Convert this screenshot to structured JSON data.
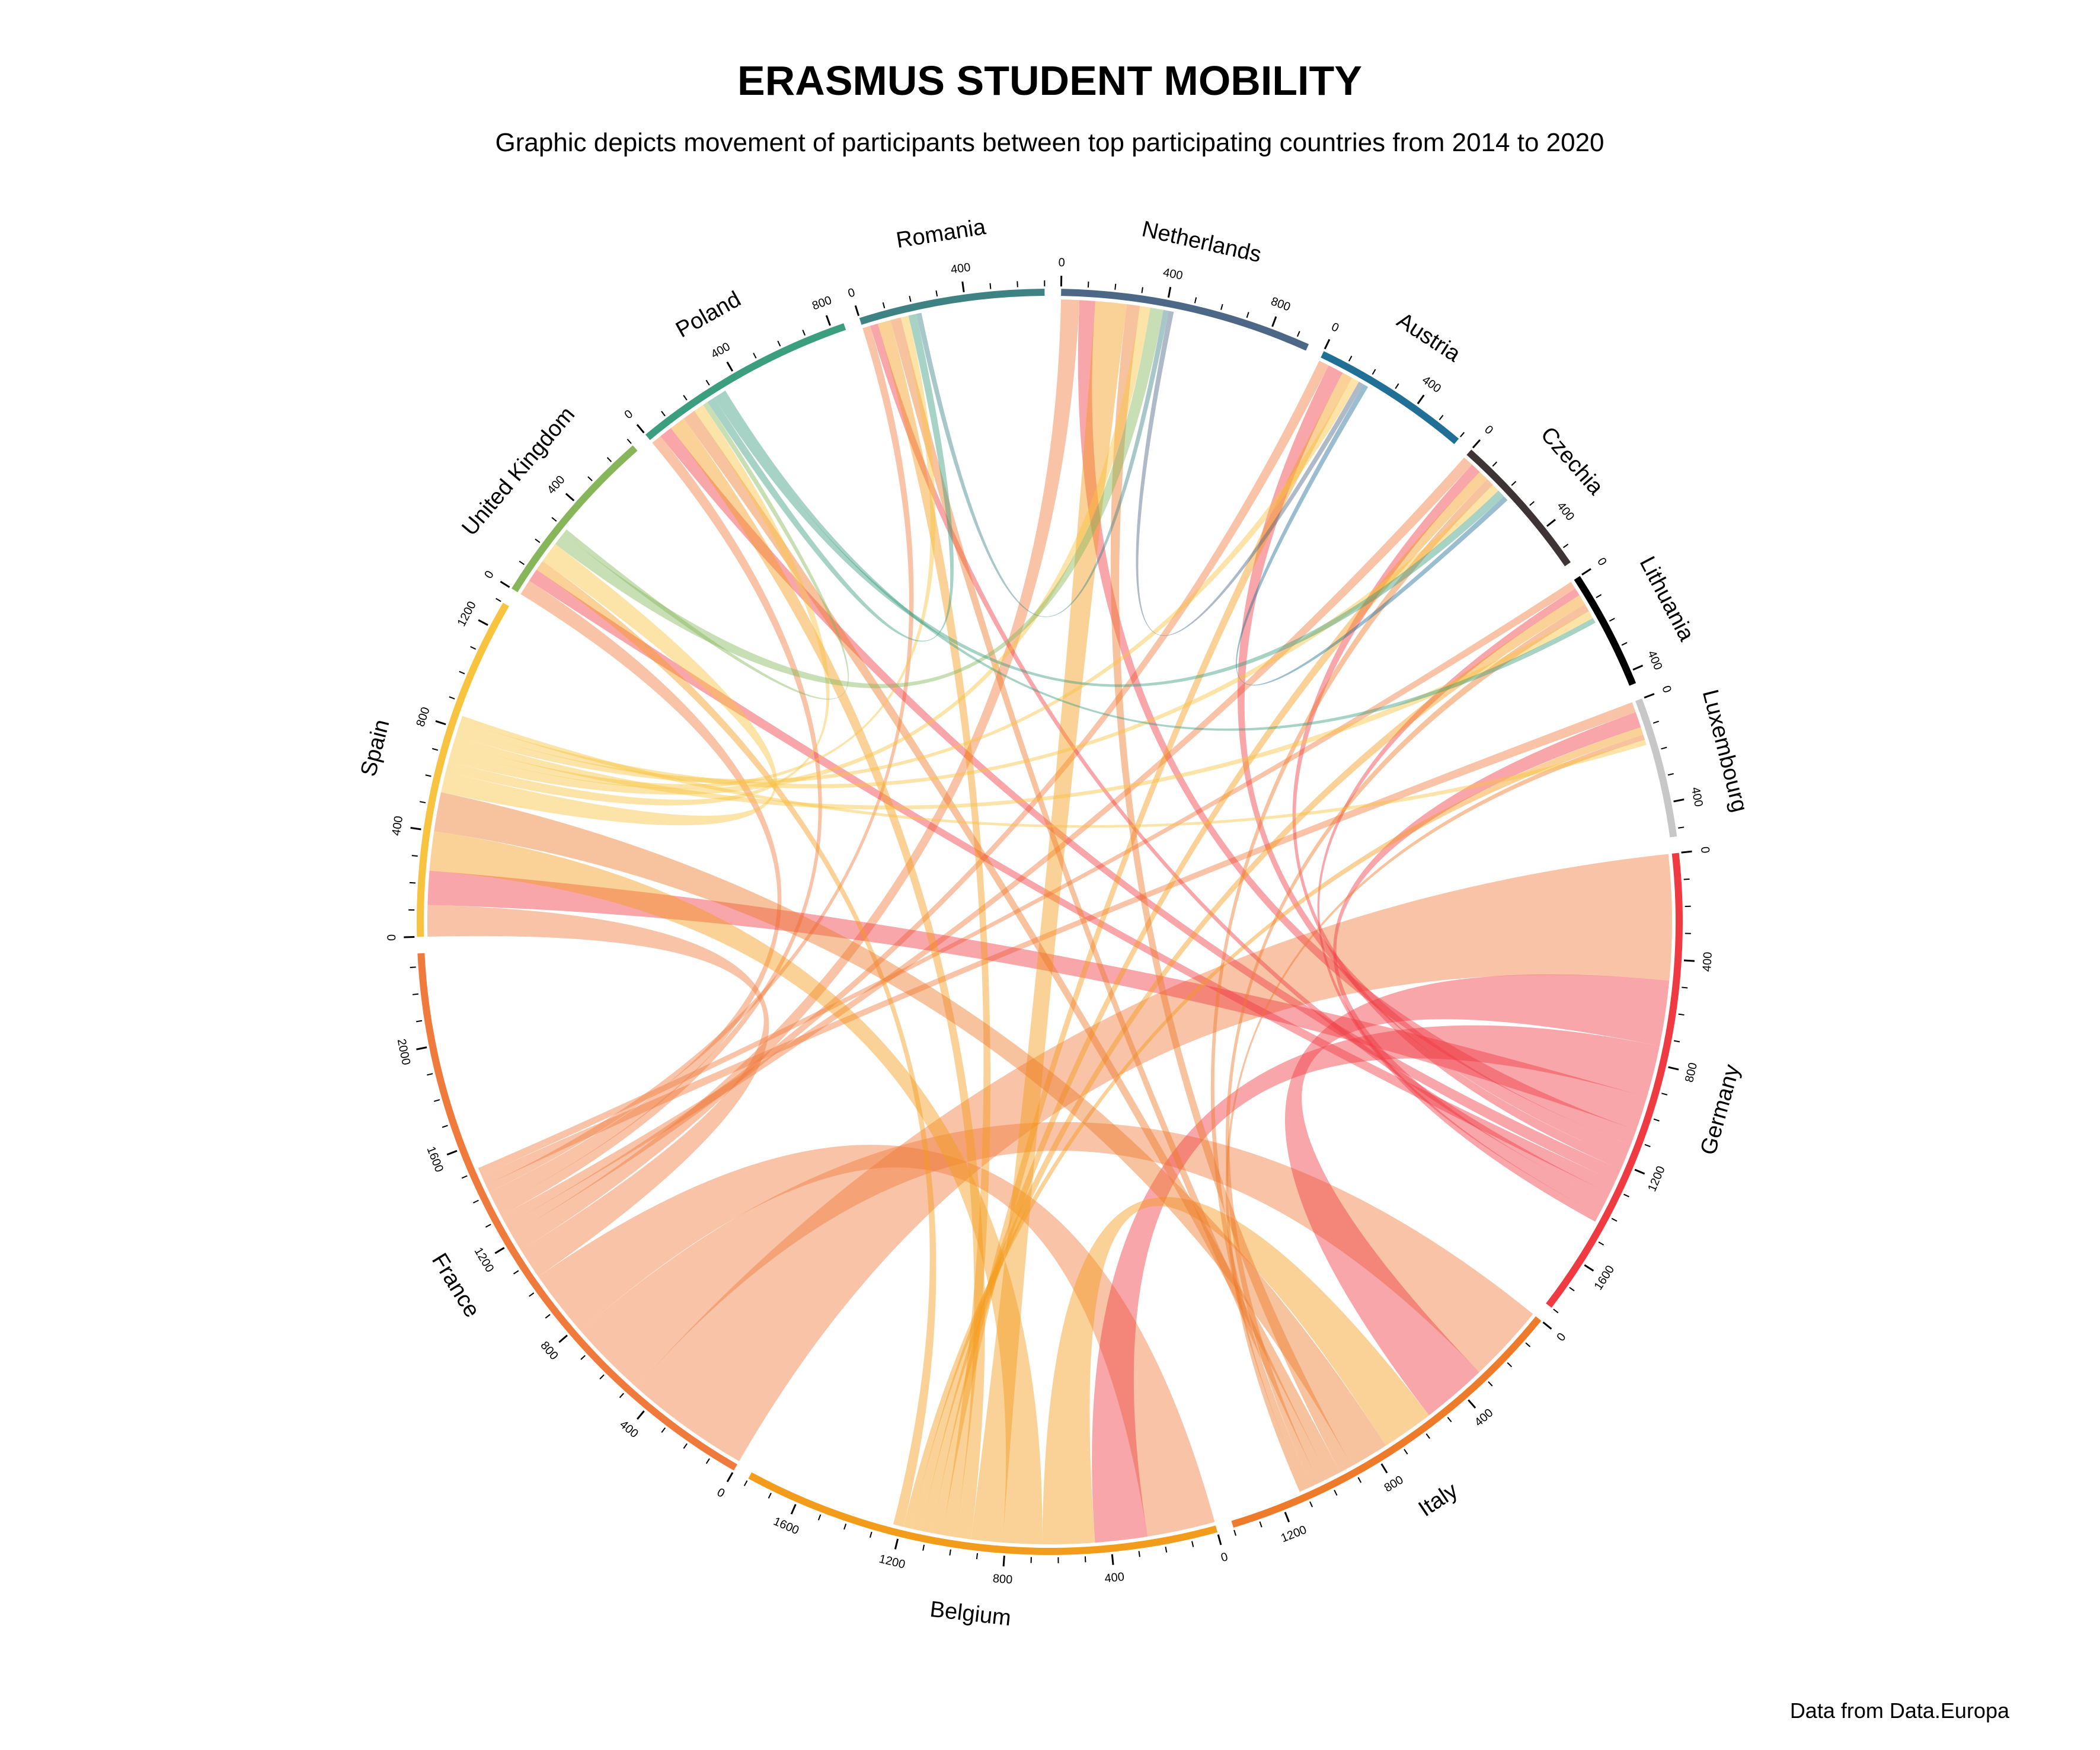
{
  "chart_data": {
    "type": "chord",
    "title": "ERASMUS STUDENT MOBILITY",
    "subtitle": "Graphic depicts movement of participants between top participating countries from 2014 to 2020",
    "source": "Data from Data.Europa",
    "gap_degrees": 1.5,
    "countries": [
      {
        "name": "Netherlands",
        "color": "#4d6786",
        "total": 950,
        "tick_labels": [
          "0",
          "400",
          "800"
        ]
      },
      {
        "name": "Austria",
        "color": "#1f6f96",
        "total": 600,
        "tick_labels": [
          "0",
          "400"
        ]
      },
      {
        "name": "Czechia",
        "color": "#3f3435",
        "total": 560,
        "tick_labels": [
          "0",
          "400"
        ]
      },
      {
        "name": "Lithuania",
        "color": "#000000",
        "total": 450,
        "tick_labels": [
          "0",
          "400"
        ]
      },
      {
        "name": "Luxembourg",
        "color": "#c7c7c7",
        "total": 530,
        "tick_labels": [
          "0",
          "400"
        ]
      },
      {
        "name": "Germany",
        "color": "#ef3a42",
        "total": 1800,
        "tick_labels": [
          "0",
          "400",
          "800",
          "1200",
          "1600"
        ]
      },
      {
        "name": "Italy",
        "color": "#ee7b2a",
        "total": 1400,
        "tick_labels": [
          "0",
          "400",
          "800",
          "1200"
        ]
      },
      {
        "name": "Belgium",
        "color": "#f39c1b",
        "total": 1800,
        "tick_labels": [
          "0",
          "400",
          "800",
          "1200",
          "1600"
        ]
      },
      {
        "name": "France",
        "color": "#ef7a3c",
        "total": 2350,
        "tick_labels": [
          "0",
          "400",
          "800",
          "1200",
          "1600",
          "2000"
        ]
      },
      {
        "name": "Spain",
        "color": "#f8c43f",
        "total": 1300,
        "tick_labels": [
          "0",
          "400",
          "800",
          "1200"
        ]
      },
      {
        "name": "United Kingdom",
        "color": "#86b55a",
        "total": 700,
        "tick_labels": [
          "0",
          "400"
        ]
      },
      {
        "name": "Poland",
        "color": "#3a9e7f",
        "total": 850,
        "tick_labels": [
          "0",
          "400",
          "800"
        ]
      },
      {
        "name": "Romania",
        "color": "#3f8284",
        "total": 700,
        "tick_labels": [
          "0",
          "400"
        ]
      }
    ],
    "flows": [
      {
        "from": "France",
        "to": "Germany",
        "value": 480
      },
      {
        "from": "France",
        "to": "Italy",
        "value": 300
      },
      {
        "from": "France",
        "to": "Belgium",
        "value": 260
      },
      {
        "from": "France",
        "to": "Spain",
        "value": 120
      },
      {
        "from": "France",
        "to": "Netherlands",
        "value": 70
      },
      {
        "from": "France",
        "to": "Austria",
        "value": 40
      },
      {
        "from": "France",
        "to": "Czechia",
        "value": 40
      },
      {
        "from": "France",
        "to": "Poland",
        "value": 40
      },
      {
        "from": "France",
        "to": "United Kingdom",
        "value": 60
      },
      {
        "from": "France",
        "to": "Romania",
        "value": 30
      },
      {
        "from": "France",
        "to": "Luxembourg",
        "value": 40
      },
      {
        "from": "France",
        "to": "Lithuania",
        "value": 30
      },
      {
        "from": "Germany",
        "to": "Italy",
        "value": 250
      },
      {
        "from": "Germany",
        "to": "Belgium",
        "value": 200
      },
      {
        "from": "Germany",
        "to": "Spain",
        "value": 130
      },
      {
        "from": "Germany",
        "to": "Netherlands",
        "value": 60
      },
      {
        "from": "Germany",
        "to": "Austria",
        "value": 60
      },
      {
        "from": "Germany",
        "to": "Czechia",
        "value": 40
      },
      {
        "from": "Germany",
        "to": "Poland",
        "value": 50
      },
      {
        "from": "Germany",
        "to": "United Kingdom",
        "value": 50
      },
      {
        "from": "Germany",
        "to": "Romania",
        "value": 30
      },
      {
        "from": "Germany",
        "to": "Luxembourg",
        "value": 60
      },
      {
        "from": "Germany",
        "to": "Lithuania",
        "value": 30
      },
      {
        "from": "Belgium",
        "to": "Italy",
        "value": 200
      },
      {
        "from": "Belgium",
        "to": "Spain",
        "value": 150
      },
      {
        "from": "Belgium",
        "to": "Netherlands",
        "value": 120
      },
      {
        "from": "Belgium",
        "to": "Poland",
        "value": 60
      },
      {
        "from": "Belgium",
        "to": "Romania",
        "value": 50
      },
      {
        "from": "Belgium",
        "to": "Austria",
        "value": 40
      },
      {
        "from": "Belgium",
        "to": "Czechia",
        "value": 40
      },
      {
        "from": "Belgium",
        "to": "Lithuania",
        "value": 40
      },
      {
        "from": "Belgium",
        "to": "Luxembourg",
        "value": 30
      },
      {
        "from": "Belgium",
        "to": "United Kingdom",
        "value": 40
      },
      {
        "from": "Italy",
        "to": "Spain",
        "value": 150
      },
      {
        "from": "Italy",
        "to": "Netherlands",
        "value": 50
      },
      {
        "from": "Italy",
        "to": "Poland",
        "value": 50
      },
      {
        "from": "Italy",
        "to": "Romania",
        "value": 40
      },
      {
        "from": "Italy",
        "to": "Lithuania",
        "value": 30
      },
      {
        "from": "Italy",
        "to": "Czechia",
        "value": 30
      },
      {
        "from": "Italy",
        "to": "Luxembourg",
        "value": 20
      },
      {
        "from": "Spain",
        "to": "United Kingdom",
        "value": 80
      },
      {
        "from": "Spain",
        "to": "Poland",
        "value": 40
      },
      {
        "from": "Spain",
        "to": "Netherlands",
        "value": 40
      },
      {
        "from": "Spain",
        "to": "Romania",
        "value": 30
      },
      {
        "from": "Spain",
        "to": "Lithuania",
        "value": 30
      },
      {
        "from": "Spain",
        "to": "Austria",
        "value": 30
      },
      {
        "from": "Spain",
        "to": "Czechia",
        "value": 30
      },
      {
        "from": "Spain",
        "to": "Luxembourg",
        "value": 20
      },
      {
        "from": "United Kingdom",
        "to": "Netherlands",
        "value": 50
      },
      {
        "from": "United Kingdom",
        "to": "Poland",
        "value": 20
      },
      {
        "from": "Poland",
        "to": "Romania",
        "value": 30
      },
      {
        "from": "Poland",
        "to": "Czechia",
        "value": 30
      },
      {
        "from": "Poland",
        "to": "Lithuania",
        "value": 20
      },
      {
        "from": "Romania",
        "to": "Netherlands",
        "value": 20
      },
      {
        "from": "Netherlands",
        "to": "Austria",
        "value": 20
      },
      {
        "from": "Austria",
        "to": "Czechia",
        "value": 20
      }
    ]
  }
}
